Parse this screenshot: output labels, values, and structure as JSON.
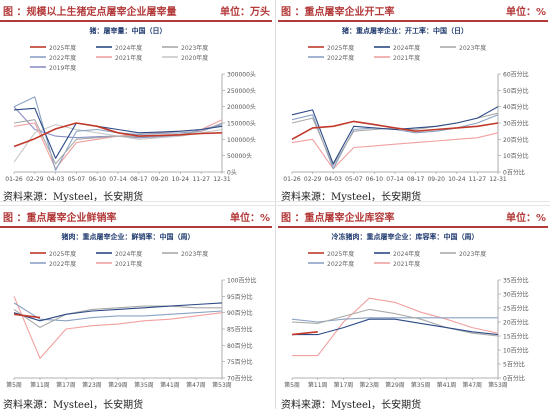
{
  "panels": [
    {
      "id": "p1",
      "title_label": "图 ：规模以上生猪定点屠宰企业屠宰量",
      "unit": "单位：万头",
      "source": "资料来源：Mysteel，长安期货",
      "chart_data": {
        "type": "line",
        "title": "猪：屠宰量：中国（日）",
        "legend": [
          "2025年度",
          "2024年度",
          "2023年度",
          "2022年度",
          "2021年度",
          "2020年度",
          "2019年度"
        ],
        "colors": [
          "#c0392b",
          "#2c4a86",
          "#a9a9a9",
          "#8aa2c4",
          "#f2a0a0",
          "#c8c8c8",
          "#8a8fc4"
        ],
        "xticks": [
          "01-26",
          "02-29",
          "04-03",
          "05-07",
          "06-10",
          "07-14",
          "08-17",
          "09-20",
          "10-24",
          "11-27",
          "12-31"
        ],
        "yticks": [
          "0头",
          "50000头",
          "100000头",
          "150000头",
          "200000头",
          "250000头",
          "300000头"
        ],
        "ylim": [
          0,
          300000
        ],
        "series": [
          {
            "name": "2025年度",
            "values": [
              78000,
              102000,
              132000,
              150000,
              140000,
              120000,
              110000,
              112000,
              114000,
              118000,
              120000
            ]
          },
          {
            "name": "2024年度",
            "values": [
              190000,
              195000,
              42000,
              150000,
              140000,
              130000,
              120000,
              122000,
              125000,
              130000,
              140000
            ]
          },
          {
            "name": "2023年度",
            "values": [
              150000,
              160000,
              25000,
              100000,
              105000,
              110000,
              108000,
              110000,
              115000,
              125000,
              150000
            ]
          },
          {
            "name": "2022年度",
            "values": [
              200000,
              230000,
              5000,
              125000,
              130000,
              120000,
              115000,
              118000,
              120000,
              125000,
              145000
            ]
          },
          {
            "name": "2021年度",
            "values": [
              140000,
              150000,
              10000,
              90000,
              100000,
              110000,
              115000,
              120000,
              125000,
              130000,
              160000
            ]
          },
          {
            "name": "2020年度",
            "values": [
              30000,
              120000,
              145000,
              130000,
              120000,
              110000,
              100000,
              105000,
              110000,
              120000,
              130000
            ]
          },
          {
            "name": "2019年度",
            "values": [
              200000,
              130000,
              110000,
              105000,
              108000,
              110000,
              105000,
              108000,
              112000,
              130000,
              145000
            ]
          }
        ]
      }
    },
    {
      "id": "p2",
      "title_label": "图 ：重点屠宰企业开工率",
      "unit": "单位：%",
      "source": "资料来源：Mysteel，长安期货",
      "chart_data": {
        "type": "line",
        "title": "猪：重点屠宰企业：开工率：中国（日）",
        "legend": [
          "2025年度",
          "2024年度",
          "2023年度",
          "2022年度",
          "2021年度"
        ],
        "colors": [
          "#c0392b",
          "#2c4a86",
          "#a9a9a9",
          "#8aa2c4",
          "#f2a0a0"
        ],
        "xticks": [
          "01-26",
          "02-29",
          "04-03",
          "05-07",
          "06-10",
          "07-14",
          "08-17",
          "09-20",
          "10-24",
          "11-27",
          "12-31"
        ],
        "yticks": [
          "0百分比",
          "10百分比",
          "20百分比",
          "30百分比",
          "40百分比",
          "50百分比",
          "60百分比"
        ],
        "ylim": [
          0,
          60
        ],
        "series": [
          {
            "name": "2025年度",
            "values": [
              20,
              27,
              28,
              31,
              29,
              27,
              25,
              26,
              27,
              28,
              30
            ]
          },
          {
            "name": "2024年度",
            "values": [
              35,
              38,
              5,
              28,
              27,
              26,
              27,
              28,
              30,
              33,
              40
            ]
          },
          {
            "name": "2023年度",
            "values": [
              30,
              33,
              4,
              25,
              26,
              27,
              26,
              28,
              30,
              33,
              36
            ]
          },
          {
            "name": "2022年度",
            "values": [
              32,
              35,
              2,
              26,
              27,
              26,
              24,
              25,
              27,
              30,
              35
            ]
          },
          {
            "name": "2021年度",
            "values": [
              18,
              20,
              2,
              15,
              16,
              17,
              18,
              19,
              20,
              21,
              24
            ]
          }
        ]
      }
    },
    {
      "id": "p3",
      "title_label": "图 ：重点屠宰企业鲜销率",
      "unit": "单位：%",
      "source": "资料来源：Mysteel，长安期货",
      "chart_data": {
        "type": "line",
        "title": "猪肉：重点屠宰企业：鲜销率：中国（周）",
        "legend": [
          "2025年度",
          "2024年度",
          "2023年度",
          "2022年度",
          "2021年度"
        ],
        "colors": [
          "#c0392b",
          "#2c4a86",
          "#a9a9a9",
          "#8aa2c4",
          "#f2a0a0"
        ],
        "xticks": [
          "第5周",
          "第11周",
          "第17周",
          "第23周",
          "第29周",
          "第35周",
          "第41周",
          "第47周",
          "第53周"
        ],
        "yticks": [
          "70百分比",
          "75百分比",
          "80百分比",
          "85百分比",
          "90百分比",
          "95百分比",
          "100百分比"
        ],
        "ylim": [
          70,
          100
        ],
        "series": [
          {
            "name": "2025年度",
            "values": [
              89.5,
              88.5,
              null,
              null,
              null,
              null,
              null,
              null,
              null
            ]
          },
          {
            "name": "2024年度",
            "values": [
              90,
              87.5,
              89.5,
              90.5,
              91,
              91.5,
              92,
              92.5,
              93
            ]
          },
          {
            "name": "2023年度",
            "values": [
              91,
              85.5,
              89.5,
              91,
              91.5,
              92,
              92,
              91.5,
              91.5
            ]
          },
          {
            "name": "2022年度",
            "values": [
              93,
              88,
              87.5,
              88.5,
              89,
              89,
              89.5,
              90,
              90.5
            ]
          },
          {
            "name": "2021年度",
            "values": [
              95,
              76,
              85,
              86,
              86.5,
              87.5,
              88,
              89,
              90
            ]
          }
        ]
      }
    },
    {
      "id": "p4",
      "title_label": "图 ：重点屠宰企业库容率",
      "unit": "单位：%",
      "source": "资料来源：Mysteel，长安期货",
      "chart_data": {
        "type": "line",
        "title": "冷冻猪肉：重点屠宰企业：库容率：中国（周）",
        "legend": [
          "2025年度",
          "2024年度",
          "2023年度",
          "2022年度",
          "2021年度"
        ],
        "colors": [
          "#c0392b",
          "#2c4a86",
          "#a9a9a9",
          "#8aa2c4",
          "#f2a0a0"
        ],
        "xticks": [
          "第5周",
          "第11周",
          "第17周",
          "第23周",
          "第29周",
          "第35周",
          "第41周",
          "第47周",
          "第53周"
        ],
        "yticks": [
          "0百分比",
          "5百分比",
          "10百分比",
          "15百分比",
          "20百分比",
          "25百分比",
          "30百分比",
          "35百分比"
        ],
        "ylim": [
          0,
          35
        ],
        "series": [
          {
            "name": "2025年度",
            "values": [
              15.5,
              16.5,
              null,
              null,
              null,
              null,
              null,
              null,
              null
            ]
          },
          {
            "name": "2024年度",
            "values": [
              15.5,
              15.5,
              18,
              21,
              21,
              19.5,
              18,
              16.5,
              15.5
            ]
          },
          {
            "name": "2023年度",
            "values": [
              20,
              19.5,
              22,
              24.5,
              23,
              21,
              18,
              16,
              15
            ]
          },
          {
            "name": "2022年度",
            "values": [
              21,
              20,
              21,
              21.5,
              21.5,
              21.5,
              21.5,
              21.5,
              21.5
            ]
          },
          {
            "name": "2021年度",
            "values": [
              8,
              8,
              20,
              28.5,
              27,
              23.5,
              21,
              18,
              16
            ]
          }
        ]
      }
    }
  ]
}
